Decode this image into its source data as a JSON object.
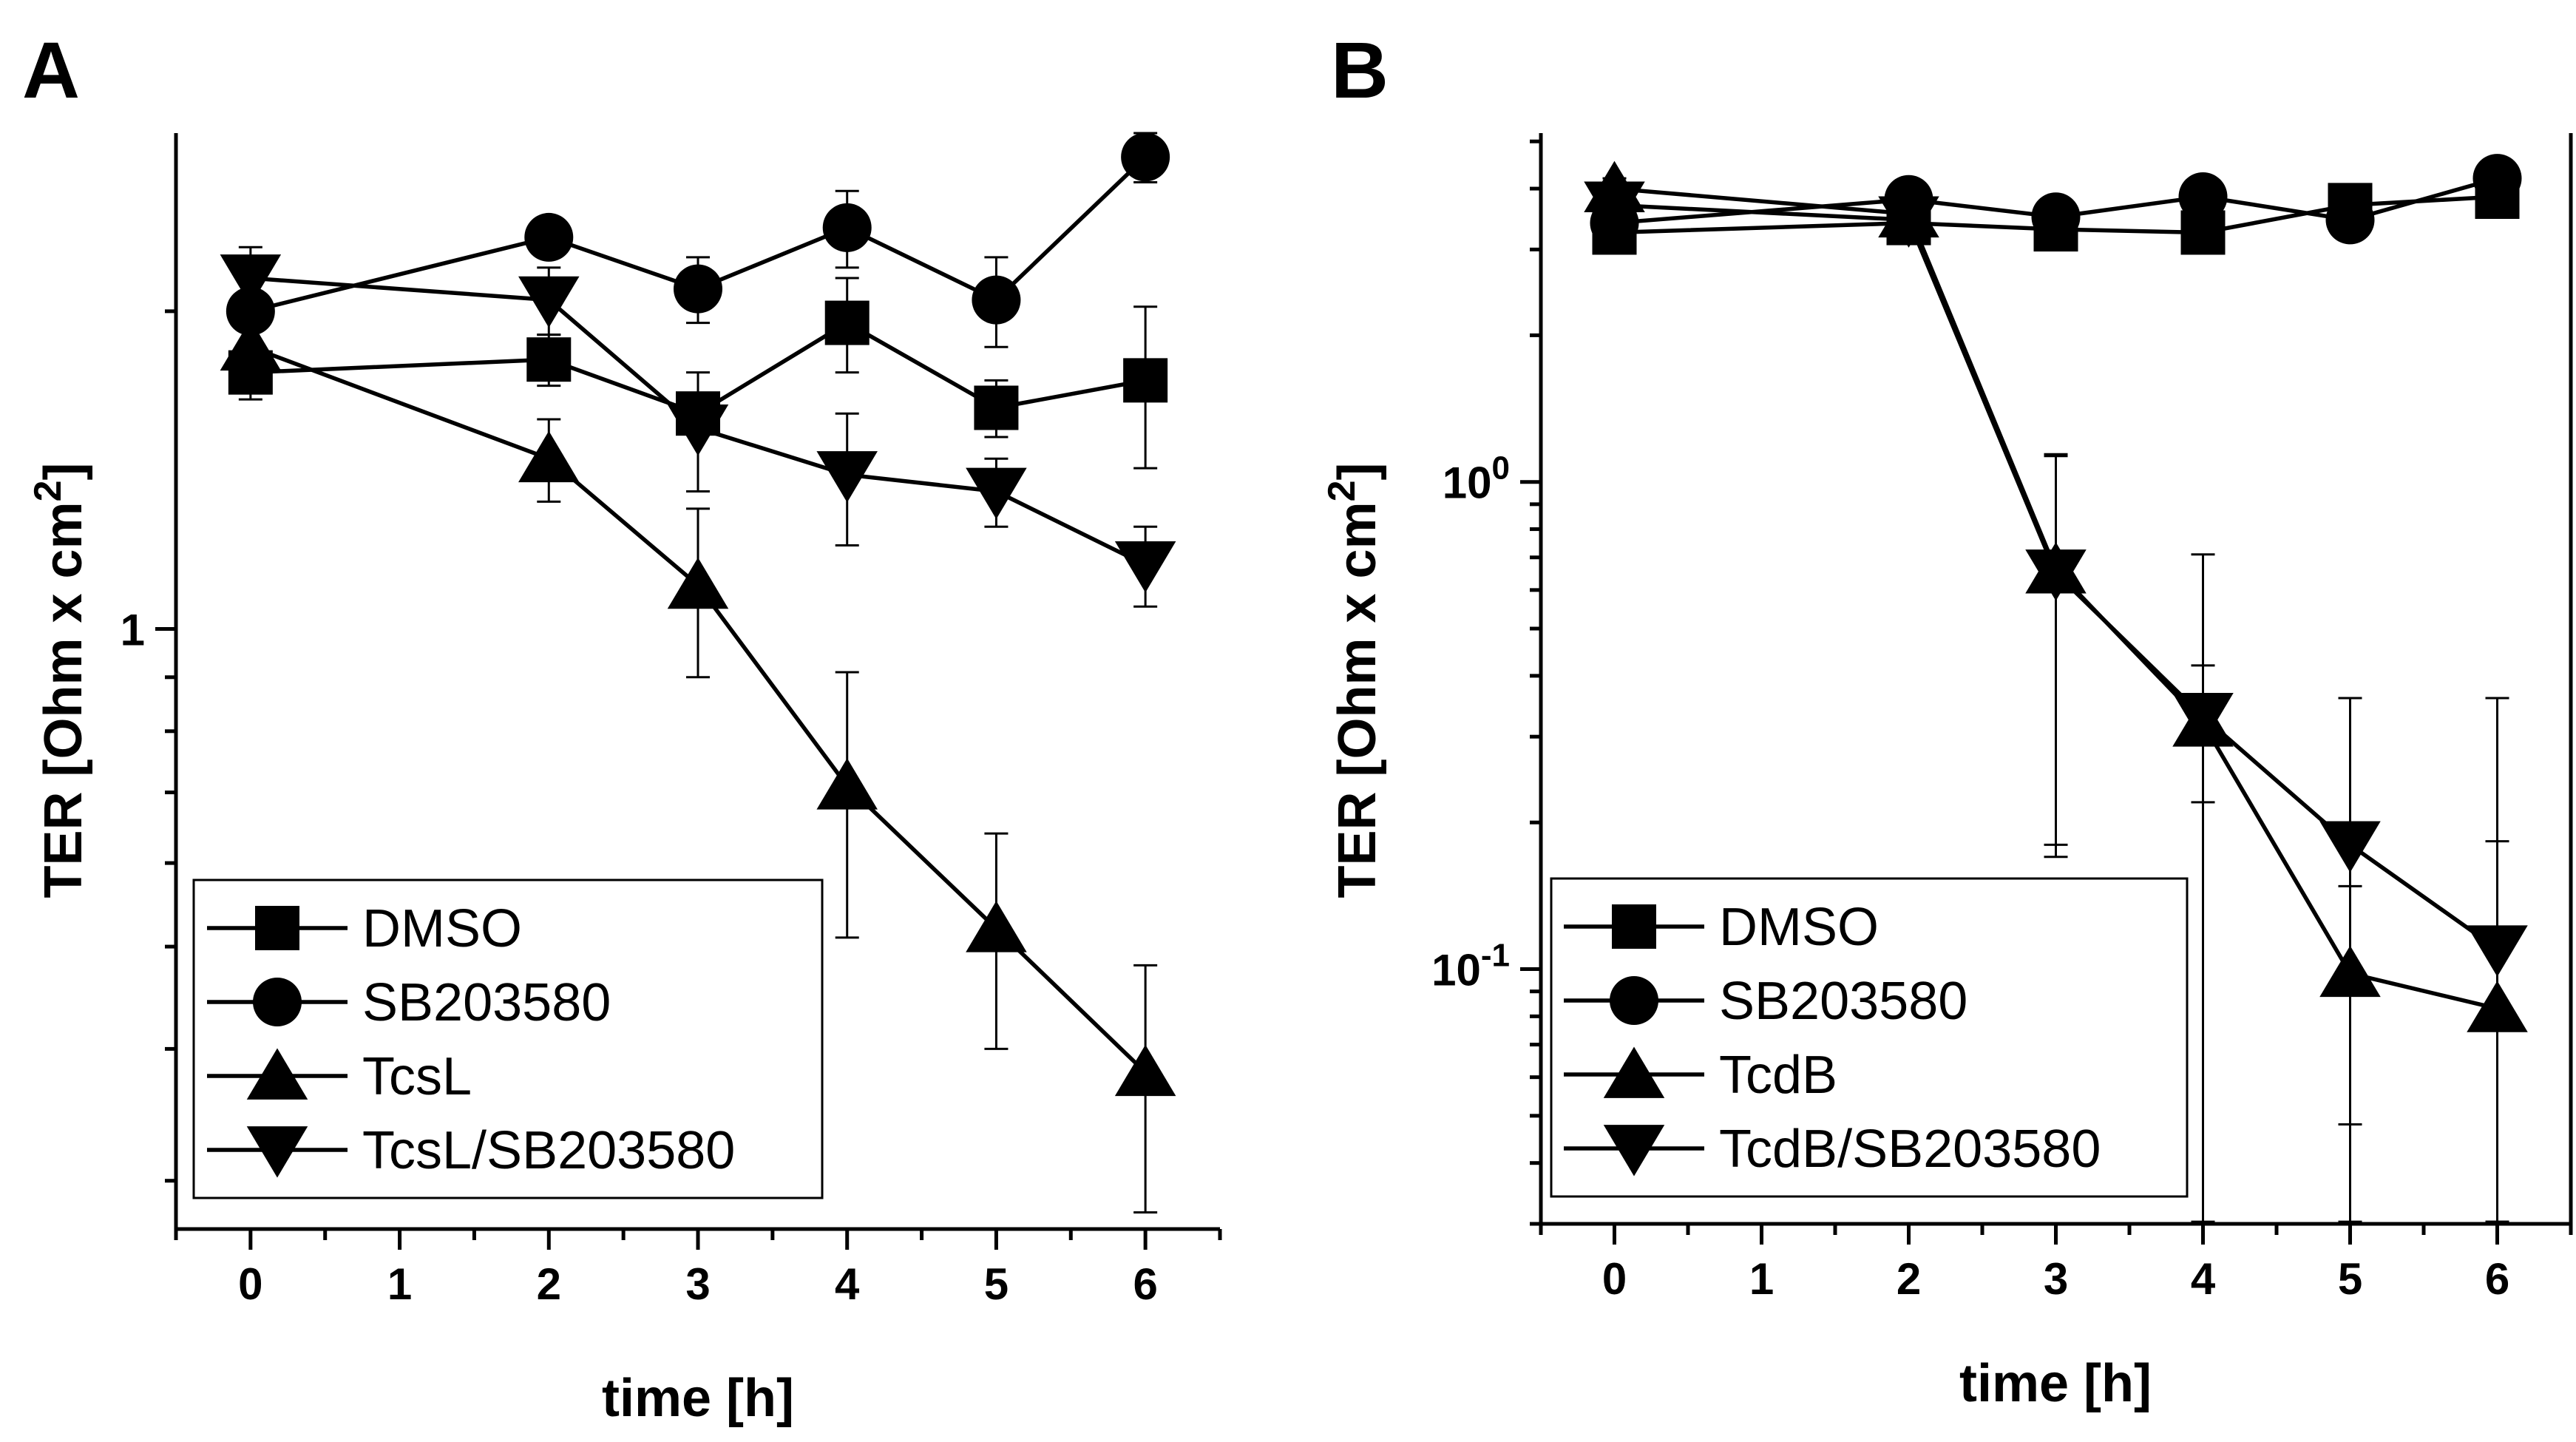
{
  "figure_labels": {
    "A": "A",
    "B": "B"
  },
  "chart_data": [
    {
      "panel": "A",
      "type": "line",
      "scale": "log",
      "title": "",
      "xlabel": "time [h]",
      "ylabel": "TER [Ohm x cm",
      "ylabel_sup": "2",
      "ylabel_close": "]",
      "x_ticks": [
        "0",
        "1",
        "2",
        "3",
        "4",
        "5",
        "6"
      ],
      "y_tick_labels": [
        {
          "value": 1,
          "label": "1"
        }
      ],
      "xlim": [
        -0.5,
        6.5
      ],
      "ylim": [
        0.27,
        2.95
      ],
      "grid": false,
      "legend_position": "bottom-left",
      "x": [
        0,
        2,
        3,
        4,
        5,
        6
      ],
      "series": [
        {
          "name": "DMSO",
          "marker": "square",
          "values": [
            1.75,
            1.8,
            1.6,
            1.95,
            1.62,
            1.72
          ],
          "err": [
            0.1,
            0.1,
            0.07,
            0.2,
            0.1,
            0.3
          ]
        },
        {
          "name": "SB203580",
          "marker": "circle",
          "values": [
            2.0,
            2.35,
            2.1,
            2.4,
            2.05,
            2.8
          ],
          "err": [
            0.2,
            0.1,
            0.15,
            0.2,
            0.2,
            0.15
          ]
        },
        {
          "name": "TcsL",
          "marker": "triangle-up",
          "values": [
            1.85,
            1.45,
            1.1,
            0.71,
            0.52,
            0.38
          ],
          "err": [
            0.1,
            0.13,
            0.2,
            0.2,
            0.12,
            0.1
          ]
        },
        {
          "name": "TcsL/SB203580",
          "marker": "triangle-down",
          "values": [
            2.15,
            2.05,
            1.55,
            1.4,
            1.35,
            1.15
          ],
          "err": [
            0.15,
            0.15,
            0.2,
            0.2,
            0.1,
            0.1
          ]
        }
      ]
    },
    {
      "panel": "B",
      "type": "line",
      "scale": "log",
      "title": "",
      "xlabel": "time [h]",
      "ylabel": "TER [Ohm x cm",
      "ylabel_sup": "2",
      "ylabel_close": "]",
      "x_ticks": [
        "0",
        "1",
        "2",
        "3",
        "4",
        "5",
        "6"
      ],
      "y_tick_labels": [
        {
          "value": 1,
          "base": "10",
          "exp": "0"
        },
        {
          "value": 0.1,
          "base": "10",
          "exp": "-1"
        }
      ],
      "xlim": [
        -0.5,
        6.5
      ],
      "ylim": [
        0.03,
        5.2
      ],
      "grid": false,
      "legend_position": "bottom-left",
      "x": [
        0,
        2,
        3,
        4,
        5,
        6
      ],
      "series": [
        {
          "name": "DMSO",
          "marker": "square",
          "values": [
            3.25,
            3.4,
            3.3,
            3.25,
            3.7,
            3.85
          ],
          "err": [
            0.2,
            0.2,
            0.2,
            0.2,
            0.2,
            0.3
          ]
        },
        {
          "name": "SB203580",
          "marker": "circle",
          "values": [
            3.4,
            3.8,
            3.5,
            3.85,
            3.45,
            4.2
          ],
          "err": [
            0.2,
            0.2,
            0.2,
            0.25,
            0.25,
            0.3
          ]
        },
        {
          "name": "TcdB",
          "marker": "triangle-up",
          "values": [
            4.0,
            3.55,
            0.66,
            0.32,
            0.098,
            0.083
          ],
          "err": [
            0.2,
            0.2,
            0.48,
            0.1,
            0.05,
            0.1
          ]
        },
        {
          "name": "TcdB/SB203580",
          "marker": "triangle-down",
          "values": [
            3.7,
            3.45,
            0.65,
            0.33,
            0.18,
            0.11
          ],
          "err": [
            0.2,
            0.2,
            0.48,
            0.38,
            0.18,
            0.25
          ]
        }
      ]
    }
  ]
}
